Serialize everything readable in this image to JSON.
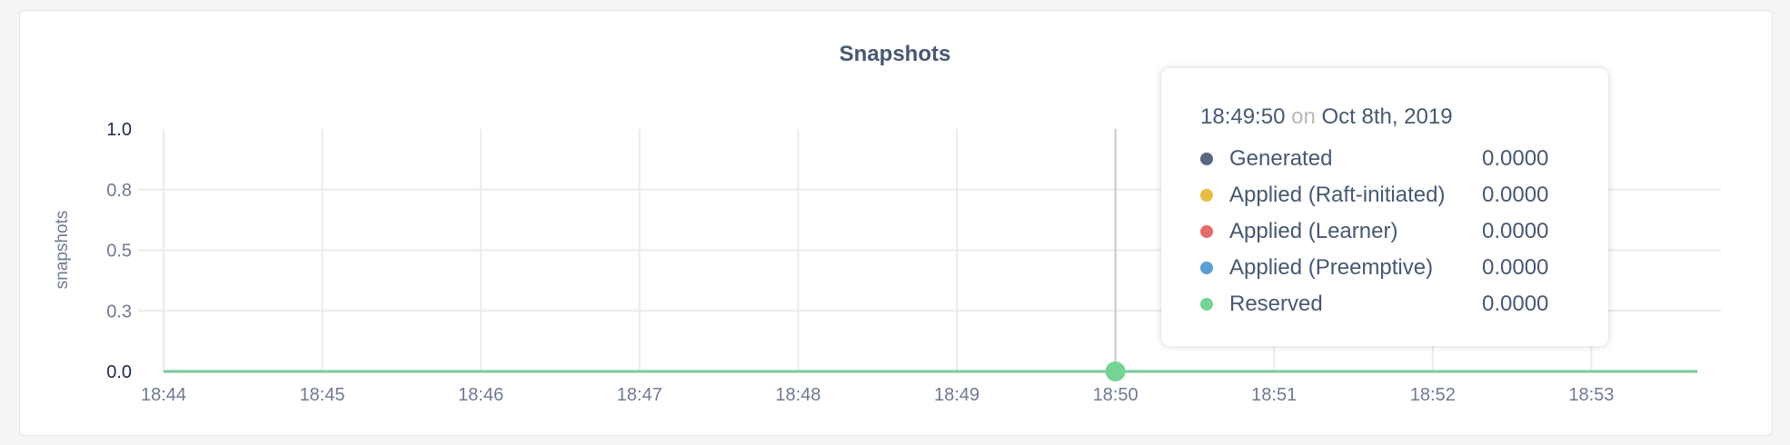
{
  "chart_data": {
    "type": "line",
    "title": "Snapshots",
    "ylabel": "snapshots",
    "xlabel": "",
    "ylim": [
      0,
      1
    ],
    "yticks": [
      0,
      0.25,
      0.5,
      0.75,
      1.0
    ],
    "ytick_labels": [
      "0.0",
      "0.3",
      "0.5",
      "0.8",
      "1.0"
    ],
    "xlim": [
      "18:44",
      "18:53:40"
    ],
    "xtick_labels": [
      "18:44",
      "18:45",
      "18:46",
      "18:47",
      "18:48",
      "18:49",
      "18:50",
      "18:51",
      "18:52",
      "18:53"
    ],
    "grid": true,
    "series": [
      {
        "name": "Generated",
        "color": "#5a6782",
        "x": [
          "18:44",
          "18:53:40"
        ],
        "values": [
          0,
          0
        ]
      },
      {
        "name": "Applied (Raft-initiated)",
        "color": "#e8bb46",
        "x": [
          "18:44",
          "18:53:40"
        ],
        "values": [
          0,
          0
        ]
      },
      {
        "name": "Applied (Learner)",
        "color": "#e56a6a",
        "x": [
          "18:44",
          "18:53:40"
        ],
        "values": [
          0,
          0
        ]
      },
      {
        "name": "Applied (Preemptive)",
        "color": "#5b9fd4",
        "x": [
          "18:44",
          "18:53:40"
        ],
        "values": [
          0,
          0
        ]
      },
      {
        "name": "Reserved",
        "color": "#74d395",
        "x": [
          "18:44",
          "18:53:40"
        ],
        "values": [
          0,
          0
        ]
      }
    ],
    "hover": {
      "x": "18:50"
    }
  },
  "tooltip": {
    "time": "18:49:50",
    "on": "on",
    "date": "Oct 8th, 2019",
    "rows": [
      {
        "name": "Generated",
        "value": "0.0000",
        "color": "#5a6782"
      },
      {
        "name": "Applied (Raft-initiated)",
        "value": "0.0000",
        "color": "#e8bb46"
      },
      {
        "name": "Applied (Learner)",
        "value": "0.0000",
        "color": "#e56a6a"
      },
      {
        "name": "Applied (Preemptive)",
        "value": "0.0000",
        "color": "#5b9fd4"
      },
      {
        "name": "Reserved",
        "value": "0.0000",
        "color": "#74d395"
      }
    ]
  }
}
